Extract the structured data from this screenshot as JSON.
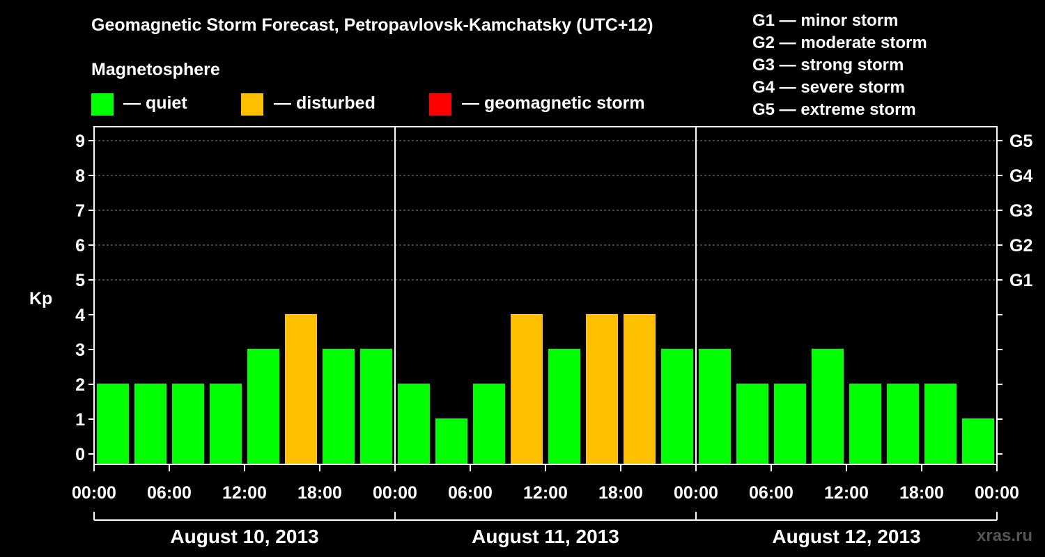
{
  "title": "Geomagnetic Storm Forecast, Petropavlovsk-Kamchatsky (UTC+12)",
  "magnetosphere_label": "Magnetosphere",
  "legend": [
    {
      "label": "— quiet",
      "color": "#00FF00"
    },
    {
      "label": "— disturbed",
      "color": "#FFC000"
    },
    {
      "label": "— geomagnetic storm",
      "color": "#FF0000"
    }
  ],
  "storm_levels": [
    "G1 — minor storm",
    "G2 — moderate storm",
    "G3 — strong storm",
    "G4 — severe storm",
    "G5 — extreme storm"
  ],
  "watermark": "xras.ru",
  "colors": {
    "quiet": "#00FF00",
    "disturbed": "#FFC000",
    "storm": "#FF0000"
  },
  "chart_data": {
    "type": "bar",
    "ylabel": "Kp",
    "ylim": [
      0,
      9
    ],
    "yticks": [
      "0",
      "1",
      "2",
      "3",
      "4",
      "5",
      "6",
      "7",
      "8",
      "9"
    ],
    "right_axis": [
      {
        "kp": 5,
        "label": "G1"
      },
      {
        "kp": 6,
        "label": "G2"
      },
      {
        "kp": 7,
        "label": "G3"
      },
      {
        "kp": 8,
        "label": "G4"
      },
      {
        "kp": 9,
        "label": "G5"
      }
    ],
    "xticks": [
      "00:00",
      "06:00",
      "12:00",
      "18:00",
      "00:00",
      "06:00",
      "12:00",
      "18:00",
      "00:00",
      "06:00",
      "12:00",
      "18:00",
      "00:00"
    ],
    "days": [
      "August 10, 2013",
      "August 11, 2013",
      "August 12, 2013"
    ],
    "series": [
      {
        "name": "Kp",
        "values": [
          2,
          2,
          2,
          2,
          3,
          4,
          3,
          3,
          2,
          1,
          2,
          4,
          3,
          4,
          4,
          3,
          3,
          2,
          2,
          3,
          2,
          2,
          2,
          1
        ],
        "levels": [
          "quiet",
          "quiet",
          "quiet",
          "quiet",
          "quiet",
          "disturbed",
          "quiet",
          "quiet",
          "quiet",
          "quiet",
          "quiet",
          "disturbed",
          "quiet",
          "disturbed",
          "disturbed",
          "quiet",
          "quiet",
          "quiet",
          "quiet",
          "quiet",
          "quiet",
          "quiet",
          "quiet",
          "quiet"
        ]
      }
    ]
  }
}
